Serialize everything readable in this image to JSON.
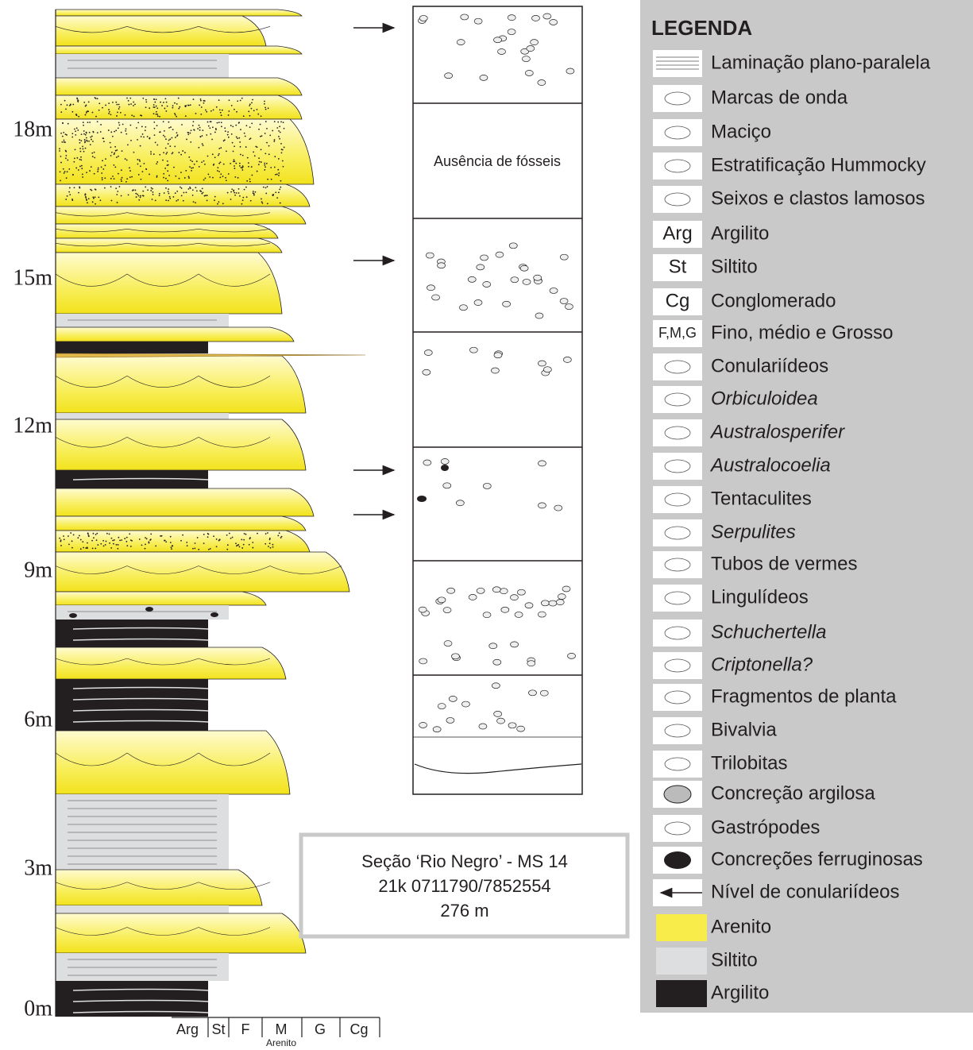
{
  "scale_labels": [
    "0m",
    "3m",
    "6m",
    "9m",
    "12m",
    "15m",
    "18m"
  ],
  "grain_axis": {
    "labels": [
      "Arg",
      "St",
      "F",
      "M",
      "G",
      "Cg"
    ],
    "group": "Arenito"
  },
  "fossil_column": {
    "note": "Ausência de fósseis"
  },
  "section_info": {
    "lines": [
      "Seção ‘Rio Negro’ - MS 14",
      "21k 0711790/7852554",
      "276 m"
    ]
  },
  "legend": {
    "title": "LEGENDA",
    "items": [
      {
        "label": "Laminação plano-paralela"
      },
      {
        "label": "Marcas de onda"
      },
      {
        "label": "Maciço"
      },
      {
        "label": "Estratificação Hummocky"
      },
      {
        "label": "Seixos e clastos lamosos"
      },
      {
        "label": "Argilito",
        "icon_text": "Arg"
      },
      {
        "label": "Siltito",
        "icon_text": "St"
      },
      {
        "label": "Conglomerado",
        "icon_text": "Cg"
      },
      {
        "label": "Fino, médio e Grosso",
        "icon_text": "F,M,G"
      },
      {
        "label": "Conulariídeos"
      },
      {
        "label": "Orbiculoidea",
        "italic": true
      },
      {
        "label": "Australosperifer",
        "italic": true
      },
      {
        "label": "Australocoelia",
        "italic": true
      },
      {
        "label": "Tentaculites"
      },
      {
        "label": "Serpulites",
        "italic": true
      },
      {
        "label": "Tubos de vermes"
      },
      {
        "label": "Lingulídeos"
      },
      {
        "label": "Schuchertella",
        "italic": true
      },
      {
        "label": "Criptonella?",
        "italic": true
      },
      {
        "label": "Fragmentos de planta"
      },
      {
        "label": "Bivalvia"
      },
      {
        "label": "Trilobitas"
      },
      {
        "label": "Concreção argilosa"
      },
      {
        "label": "Gastrópodes"
      },
      {
        "label": "Concreções ferruginosas"
      },
      {
        "label": "Nível de conulariídeos"
      },
      {
        "label": "Arenito",
        "swatch": "#f7ec4a"
      },
      {
        "label": "Siltito",
        "swatch": "#dcdedf"
      },
      {
        "label": "Argilito",
        "swatch": "#231f20"
      }
    ]
  }
}
